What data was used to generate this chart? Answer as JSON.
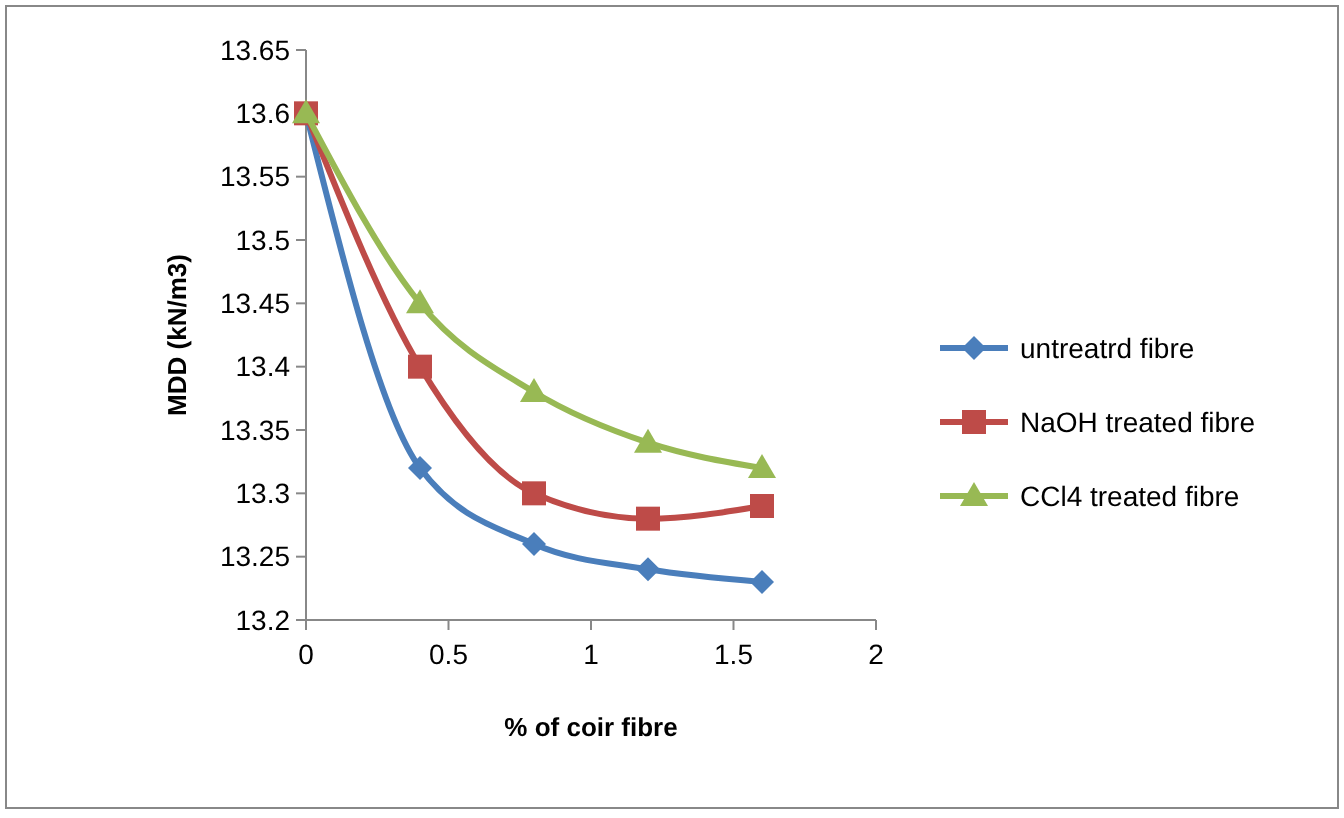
{
  "chart_data": {
    "type": "line",
    "xlabel": "% of coir fibre",
    "ylabel": "MDD (kN/m3)",
    "x": [
      0,
      0.4,
      0.8,
      1.2,
      1.6
    ],
    "series": [
      {
        "name": "untreatrd fibre",
        "color": "#4a7ebb",
        "marker": "diamond",
        "values": [
          13.6,
          13.32,
          13.26,
          13.24,
          13.23
        ]
      },
      {
        "name": "NaOH treated fibre",
        "color": "#be4b48",
        "marker": "square",
        "values": [
          13.6,
          13.4,
          13.3,
          13.28,
          13.29
        ]
      },
      {
        "name": "CCl4 treated fibre",
        "color": "#98b954",
        "marker": "triangle",
        "values": [
          13.6,
          13.45,
          13.38,
          13.34,
          13.32
        ]
      }
    ],
    "xlim": [
      0,
      2
    ],
    "xticks": [
      0,
      0.5,
      1,
      1.5,
      2
    ],
    "ylim": [
      13.2,
      13.65
    ],
    "yticks": [
      13.2,
      13.25,
      13.3,
      13.35,
      13.4,
      13.45,
      13.5,
      13.55,
      13.6,
      13.65
    ],
    "legend": "right",
    "line_style": "solid"
  }
}
